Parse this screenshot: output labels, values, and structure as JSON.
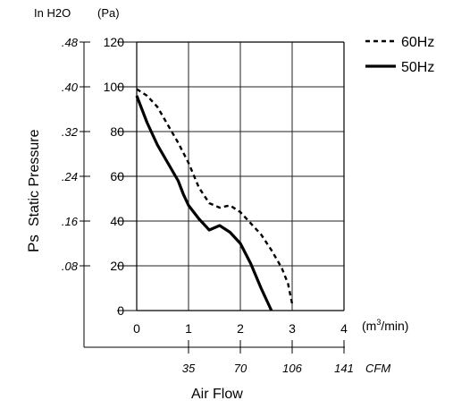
{
  "chart_data": {
    "type": "line",
    "xlabel": "Air Flow",
    "ylabel": "Static Pressure",
    "ylabel_prefix": "Ps",
    "x_unit_label_main": "(m",
    "x_unit_sup": "3",
    "x_unit_label_tail": "/min)",
    "y_unit_pa": "(Pa)",
    "y_unit_inh2o": "In H2O",
    "x_secondary_unit": "CFM",
    "xlim": [
      0,
      4
    ],
    "ylim": [
      0,
      120
    ],
    "x_ticks": [
      0,
      1,
      2,
      3,
      4
    ],
    "x_tick_labels": [
      "0",
      "1",
      "2",
      "3",
      "4"
    ],
    "y_ticks": [
      0,
      20,
      40,
      60,
      80,
      100,
      120
    ],
    "y_tick_labels": [
      "0",
      "20",
      "40",
      "60",
      "80",
      "100",
      "120"
    ],
    "y_secondary_tick_labels": [
      ".08",
      ".16",
      ".24",
      ".32",
      ".40",
      ".48"
    ],
    "x_secondary_tick_labels": [
      "35",
      "70",
      "106",
      "141"
    ],
    "grid": true,
    "legend": "top-right",
    "series": [
      {
        "name": "60Hz",
        "style": "dashed",
        "x": [
          0.0,
          0.2,
          0.4,
          0.6,
          0.8,
          1.0,
          1.2,
          1.4,
          1.6,
          1.8,
          2.0,
          2.2,
          2.4,
          2.6,
          2.8,
          2.92,
          3.0
        ],
        "y": [
          99,
          96,
          91,
          83,
          75,
          66,
          55,
          48,
          46,
          47,
          44,
          39,
          34,
          27,
          19,
          12,
          3
        ]
      },
      {
        "name": "50Hz",
        "style": "solid",
        "x": [
          0.0,
          0.2,
          0.4,
          0.6,
          0.8,
          0.9,
          1.0,
          1.2,
          1.4,
          1.6,
          1.8,
          2.0,
          2.2,
          2.4,
          2.5,
          2.6
        ],
        "y": [
          96,
          84,
          74,
          66,
          58,
          52,
          47,
          41,
          36,
          38,
          35,
          30,
          21,
          10,
          5,
          0
        ]
      }
    ]
  }
}
